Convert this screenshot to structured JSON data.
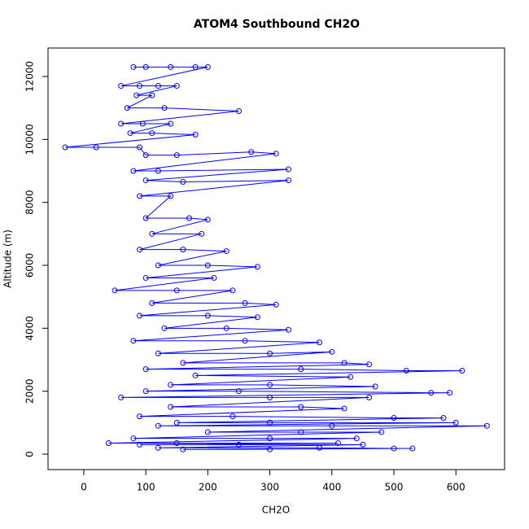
{
  "chart_data": {
    "type": "scatter",
    "connect": true,
    "title": "ATOM4 Southbound CH2O",
    "xlabel": "CH2O",
    "ylabel": "Altitude (m)",
    "color": "#0000ff",
    "x": [
      80,
      100,
      140,
      180,
      200,
      60,
      90,
      120,
      150,
      85,
      110,
      70,
      130,
      250,
      60,
      95,
      140,
      75,
      110,
      180,
      -30,
      20,
      90,
      100,
      150,
      270,
      310,
      80,
      120,
      330,
      100,
      160,
      330,
      90,
      140,
      100,
      170,
      200,
      110,
      190,
      90,
      160,
      230,
      120,
      200,
      280,
      100,
      210,
      50,
      150,
      240,
      110,
      260,
      310,
      90,
      200,
      280,
      130,
      230,
      330,
      80,
      260,
      380,
      120,
      300,
      400,
      160,
      420,
      460,
      100,
      350,
      520,
      610,
      180,
      430,
      140,
      300,
      470,
      100,
      250,
      560,
      590,
      60,
      300,
      460,
      140,
      350,
      420,
      90,
      240,
      500,
      580,
      150,
      300,
      600,
      120,
      400,
      650,
      200,
      350,
      480,
      80,
      300,
      440,
      40,
      150,
      410,
      90,
      250,
      450,
      120,
      380,
      500,
      530,
      160,
      300
    ],
    "values": [
      12300,
      12300,
      12300,
      12300,
      12300,
      11700,
      11700,
      11700,
      11700,
      11400,
      11400,
      11000,
      11000,
      10900,
      10500,
      10500,
      10500,
      10200,
      10200,
      10150,
      9750,
      9750,
      9750,
      9500,
      9500,
      9600,
      9550,
      9000,
      9000,
      9050,
      8700,
      8650,
      8700,
      8200,
      8200,
      7500,
      7500,
      7450,
      7000,
      7000,
      6500,
      6500,
      6450,
      6000,
      6000,
      5950,
      5600,
      5600,
      5200,
      5200,
      5200,
      4800,
      4800,
      4750,
      4400,
      4400,
      4350,
      4000,
      4000,
      3950,
      3600,
      3600,
      3550,
      3200,
      3200,
      3250,
      2900,
      2900,
      2850,
      2700,
      2700,
      2650,
      2650,
      2500,
      2450,
      2200,
      2200,
      2150,
      2000,
      2000,
      1950,
      1950,
      1800,
      1800,
      1800,
      1500,
      1500,
      1450,
      1200,
      1200,
      1150,
      1150,
      1000,
      1000,
      1000,
      900,
      900,
      900,
      700,
      700,
      700,
      500,
      500,
      500,
      350,
      350,
      350,
      300,
      300,
      300,
      200,
      200,
      180,
      180,
      150,
      150
    ],
    "xlim": [
      -57.7,
      678.5
    ],
    "ylim": [
      -491,
      12904
    ],
    "xticks": [
      0,
      100,
      200,
      300,
      400,
      500,
      600
    ],
    "yticks": [
      0,
      2000,
      4000,
      6000,
      8000,
      10000,
      12000
    ]
  }
}
